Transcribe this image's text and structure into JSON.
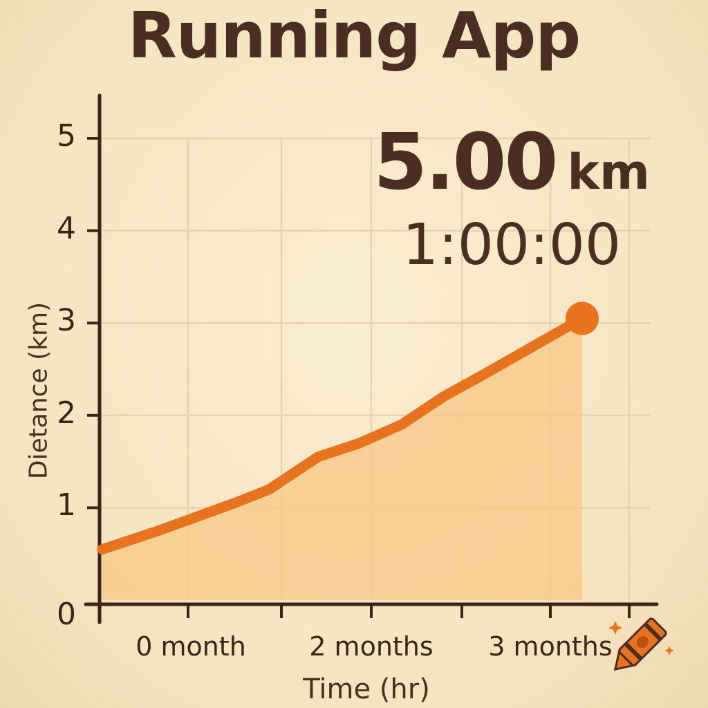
{
  "header": {
    "title": "Running App"
  },
  "stats": {
    "distance_value": "5.00",
    "distance_unit": "km",
    "duration": "1:00:00"
  },
  "chart_data": {
    "type": "area",
    "title": "",
    "xlabel": "Time (hr)",
    "ylabel": "Dietance (km)",
    "yticks": [
      "0",
      "1",
      "2",
      "3",
      "4",
      "5"
    ],
    "xticks": [
      "0 month",
      "2 months",
      "3 months"
    ],
    "ylim": [
      0,
      5
    ],
    "grid": true,
    "series": [
      {
        "x": [
          0.0,
          0.4,
          0.95,
          1.2,
          1.55,
          1.85,
          2.15,
          2.45,
          2.75,
          3.1,
          3.45
        ],
        "values": [
          0.55,
          0.75,
          1.05,
          1.2,
          1.55,
          1.7,
          1.9,
          2.2,
          2.45,
          2.75,
          3.05
        ]
      }
    ],
    "colors": {
      "line": "#e8731f",
      "fill": "#f7c98a",
      "grid": "#e7d3b0",
      "axis": "#3a2418"
    }
  },
  "decoration": {
    "icon": "crayon-icon",
    "color": "#e8731f"
  }
}
